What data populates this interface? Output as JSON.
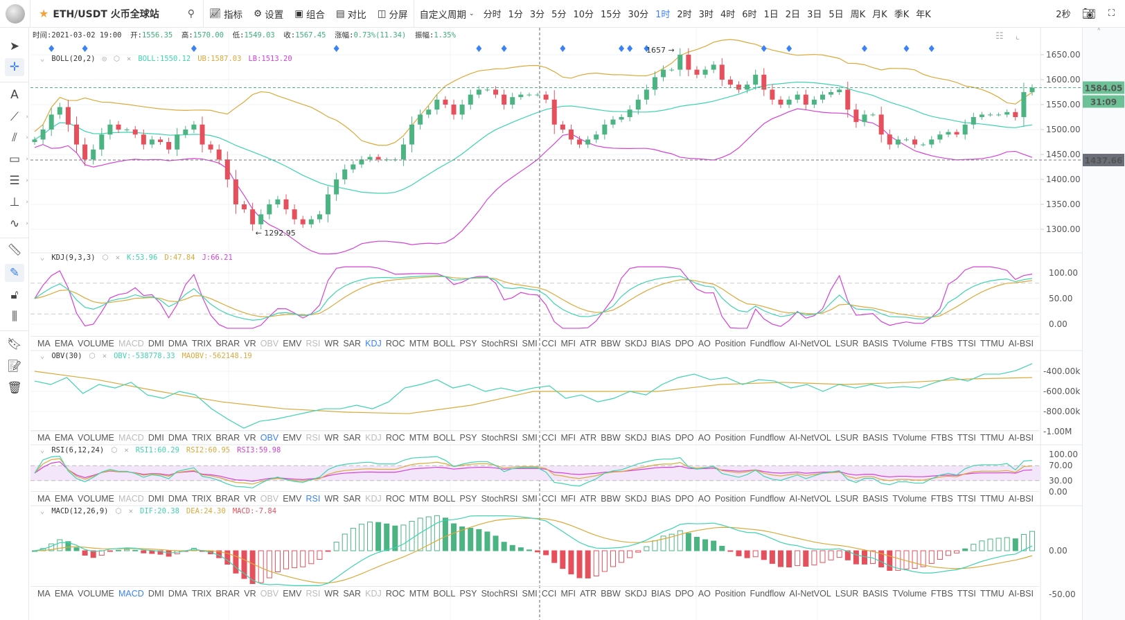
{
  "topbar": {
    "symbol": "ETH/USDT 火币全球站",
    "search_icon": "search-icon",
    "tools": [
      "指标",
      "设置",
      "组合",
      "对比",
      "分屏"
    ],
    "custom_period": "自定义周期",
    "periods": [
      "分时",
      "1分",
      "3分",
      "5分",
      "10分",
      "15分",
      "30分",
      "1时",
      "2时",
      "3时",
      "4时",
      "6时",
      "1日",
      "2日",
      "3日",
      "5日",
      "周K",
      "月K",
      "季K",
      "年K"
    ],
    "active_period": "1时",
    "refresh": "2秒"
  },
  "info": {
    "time_label": "时间:",
    "time": "2021-03-02 19:00",
    "open_label": "开:",
    "open": "1556.35",
    "high_label": "高:",
    "high": "1570.00",
    "low_label": "低:",
    "low": "1549.03",
    "close_label": "收:",
    "close": "1567.45",
    "chg_label": "涨幅:",
    "chg": "0.73%(11.34)",
    "amp_label": "振幅:",
    "amp": "1.35%"
  },
  "panels": {
    "boll": {
      "name": "BOLL(20,2)",
      "v1": "BOLL:1550.12",
      "v2": "UB:1587.03",
      "v3": "LB:1513.20"
    },
    "kdj": {
      "name": "KDJ(9,3,3)",
      "v1": "K:53.96",
      "v2": "D:47.84",
      "v3": "J:66.21"
    },
    "obv": {
      "name": "OBV(30)",
      "v1": "OBV:-538778.33",
      "v2": "MAOBV:-562148.19"
    },
    "rsi": {
      "name": "RSI(6,12,24)",
      "v1": "RSI1:60.29",
      "v2": "RSI2:60.95",
      "v3": "RSI3:59.98"
    },
    "macd": {
      "name": "MACD(12,26,9)",
      "v1": "DIF:20.38",
      "v2": "DEA:24.30",
      "v3": "MACD:-7.84"
    }
  },
  "indicator_tabs": [
    "MA",
    "EMA",
    "VOLUME",
    "MACD",
    "DMI",
    "DMA",
    "TRIX",
    "BRAR",
    "VR",
    "OBV",
    "EMV",
    "RSI",
    "WR",
    "SAR",
    "KDJ",
    "ROC",
    "MTM",
    "BOLL",
    "PSY",
    "StochRSI",
    "SMI",
    "CCI",
    "MFI",
    "ATR",
    "BBW",
    "SKDJ",
    "BIAS",
    "DPO",
    "AO",
    "Position",
    "Fundflow",
    "AI-NetVOL",
    "LSUR",
    "BASIS",
    "TVolume",
    "FTBS",
    "TTSI",
    "TTMU",
    "AI-BSI"
  ],
  "tab_rows": [
    {
      "active": "KDJ",
      "disabled": [
        "MACD",
        "OBV",
        "RSI"
      ]
    },
    {
      "active": "OBV",
      "disabled": [
        "MACD",
        "RSI",
        "KDJ"
      ]
    },
    {
      "active": "RSI",
      "disabled": [
        "MACD",
        "OBV",
        "KDJ"
      ]
    },
    {
      "active": "MACD",
      "disabled": [
        "OBV",
        "RSI",
        "KDJ"
      ]
    }
  ],
  "colors": {
    "up": "#4cb383",
    "down": "#e5505c",
    "line1": "#3dd3b0",
    "line2": "#dba93a",
    "line3": "#d541d5",
    "accent": "#3b82f6",
    "marker": "#3b82f6"
  },
  "chart_data": [
    {
      "type": "candlestick",
      "title": "BOLL(20,2)",
      "closes": [
        1480,
        1500,
        1530,
        1545,
        1510,
        1470,
        1440,
        1460,
        1490,
        1510,
        1500,
        1500,
        1490,
        1470,
        1480,
        1475,
        1460,
        1490,
        1500,
        1510,
        1470,
        1460,
        1440,
        1400,
        1350,
        1340,
        1310,
        1330,
        1350,
        1360,
        1340,
        1320,
        1310,
        1320,
        1330,
        1370,
        1400,
        1420,
        1430,
        1440,
        1445,
        1440,
        1440,
        1440,
        1470,
        1510,
        1530,
        1540,
        1560,
        1550,
        1530,
        1550,
        1570,
        1580,
        1580,
        1570,
        1550,
        1565,
        1570,
        1570,
        1570,
        1560,
        1510,
        1500,
        1480,
        1470,
        1480,
        1490,
        1510,
        1520,
        1525,
        1540,
        1560,
        1580,
        1605,
        1620,
        1620,
        1650,
        1620,
        1610,
        1620,
        1630,
        1600,
        1590,
        1580,
        1590,
        1610,
        1580,
        1560,
        1550,
        1560,
        1570,
        1550,
        1560,
        1570,
        1575,
        1580,
        1540,
        1515,
        1530,
        1530,
        1490,
        1470,
        1480,
        1480,
        1470,
        1470,
        1480,
        1490,
        1495,
        1490,
        1510,
        1525,
        1530,
        1530,
        1530,
        1535,
        1525,
        1575,
        1584
      ],
      "y_ticks": [
        "1650.00",
        "1600.00",
        "1550.00",
        "1500.00",
        "1450.00",
        "1400.00",
        "1350.00",
        "1300.00"
      ],
      "ylim": [
        1270,
        1680
      ],
      "max_annotation": "1657 →",
      "max_value": 1657,
      "min_annotation": "← 1292.95",
      "min_value": 1292.95,
      "last_price": "1584.05",
      "countdown": "31:09",
      "crosshair_price": "1437.66",
      "signal_markers": [
        2,
        6,
        19,
        36,
        53,
        56,
        63,
        70,
        71,
        73,
        87,
        90,
        99,
        104,
        107
      ]
    },
    {
      "type": "line",
      "title": "KDJ(9,3,3)",
      "y_ticks": [
        "100.00",
        "50.00",
        "0.00"
      ],
      "ylim": [
        -10,
        115
      ],
      "levels": [
        80,
        50,
        20
      ]
    },
    {
      "type": "line",
      "title": "OBV(30)",
      "y_ticks": [
        "-400.00k",
        "-600.00k",
        "-800.00k",
        "-1.00M"
      ],
      "unit": "k",
      "series": [
        {
          "name": "OBV",
          "values": [
            -497,
            -531,
            -462,
            -621,
            -531,
            -566,
            -510,
            -635,
            -669,
            -600,
            -635,
            -773,
            -876,
            -966,
            -897,
            -876,
            -842,
            -807,
            -773,
            -773,
            -738,
            -773,
            -704,
            -566,
            -531,
            -483,
            -566,
            -531,
            -600,
            -566,
            -600,
            -566,
            -545,
            -669,
            -635,
            -704,
            -669,
            -600,
            -635,
            -531,
            -462,
            -428,
            -483,
            -462,
            -531,
            -483,
            -497,
            -566,
            -531,
            -600,
            -531,
            -566,
            -531,
            -566,
            -552,
            -566,
            -510,
            -462,
            -497,
            -428,
            -428,
            -393,
            -324
          ]
        },
        {
          "name": "MAOBV",
          "values": [
            -400,
            -483,
            -600,
            -704,
            -773,
            -807,
            -821,
            -738,
            -600,
            -600,
            -600,
            -531,
            -510,
            -531,
            -510,
            -476,
            -462
          ]
        }
      ]
    },
    {
      "type": "line",
      "title": "RSI(6,12,24)",
      "y_ticks": [
        "100.00",
        "70.00",
        "30.00",
        "0.00"
      ],
      "ylim": [
        0,
        100
      ],
      "band": [
        30,
        70
      ]
    },
    {
      "type": "bar+line",
      "title": "MACD(12,26,9)",
      "y_ticks": [
        "0.00",
        "-50.00"
      ]
    }
  ]
}
